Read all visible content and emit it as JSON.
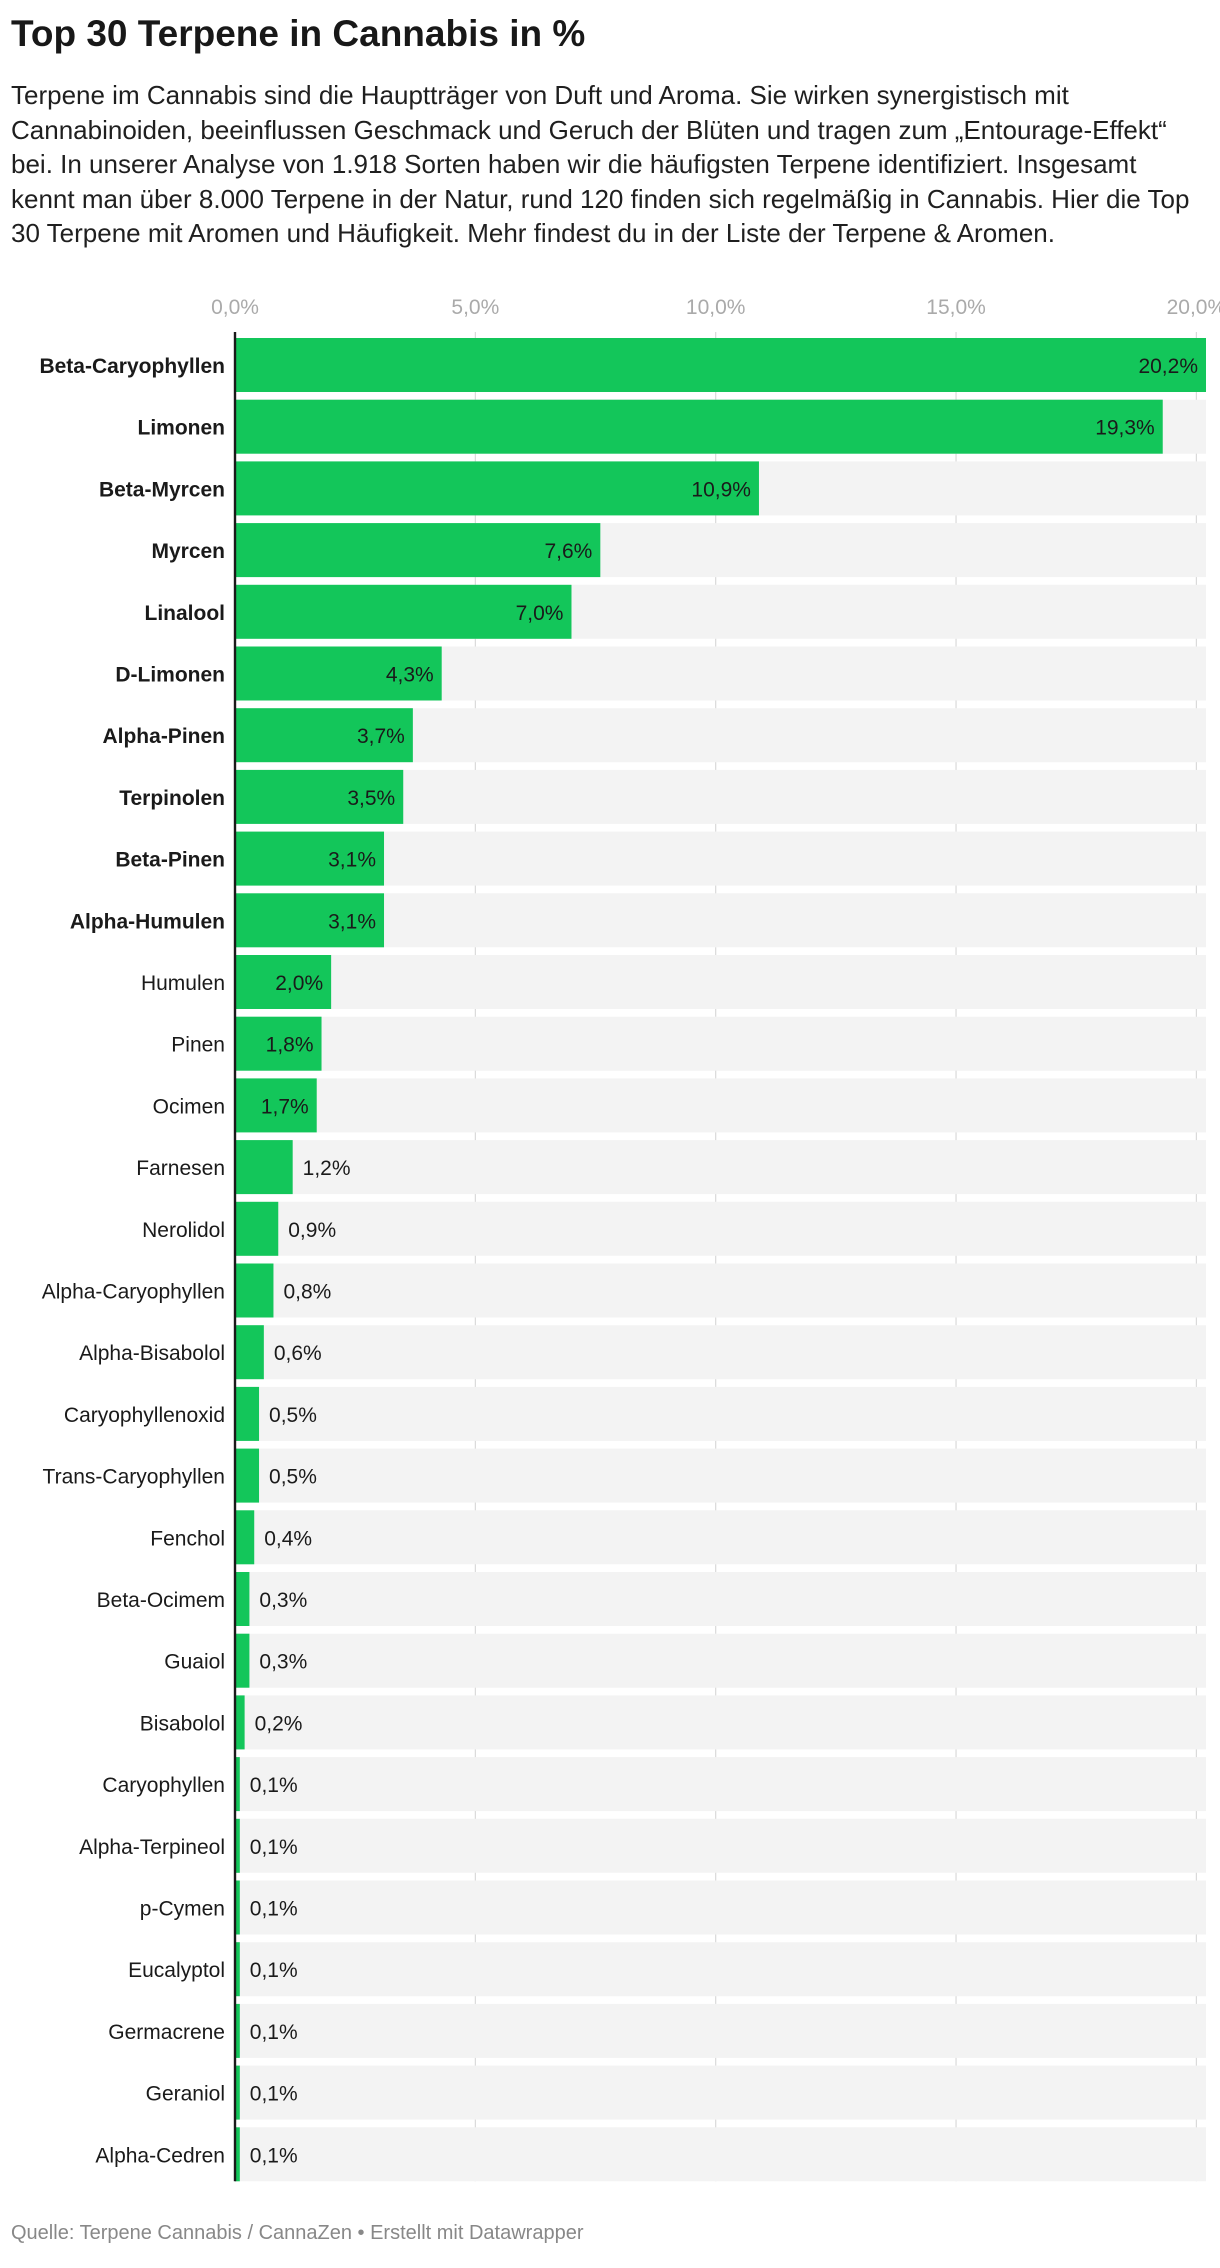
{
  "header": {
    "title": "Top 30 Terpene in Cannabis in %",
    "description": "Terpene im Cannabis sind die Hauptträger von Duft und Aroma. Sie wirken synergistisch mit Cannabinoiden, beeinflussen Geschmack und Geruch der Blüten und tragen zum „Entourage-Effekt“ bei. In unserer Analyse von 1.918 Sorten haben wir die häufigsten Terpene identifiziert. Insgesamt kennt man über 8.000 Terpene in der Natur, rund 120 finden sich regelmäßig in Cannabis. Hier die Top 30 Terpene mit Aromen und Häufigkeit. Mehr findest du in der Liste der Terpene & Aromen."
  },
  "footer": {
    "source": "Quelle: Terpene Cannabis / CannaZen • Erstellt mit Datawrapper"
  },
  "colors": {
    "bar": "#13c65a",
    "track": "#f3f3f3",
    "grid": "#d9d9d9",
    "axis": "#1a1a1a",
    "tick_label": "#aaaaaa"
  },
  "chart_data": {
    "type": "bar",
    "orientation": "horizontal",
    "title": "Top 30 Terpene in Cannabis in %",
    "xlim": [
      0,
      20.2
    ],
    "x_ticks": [
      0,
      5,
      10,
      15,
      20
    ],
    "x_tick_labels": [
      "0,0%",
      "5,0%",
      "10,0%",
      "15,0%",
      "20,0%"
    ],
    "grid": true,
    "categories": [
      "Beta-Caryophyllen",
      "Limonen",
      "Beta-Myrcen",
      "Myrcen",
      "Linalool",
      "D-Limonen",
      "Alpha-Pinen",
      "Terpinolen",
      "Beta-Pinen",
      "Alpha-Humulen",
      "Humulen",
      "Pinen",
      "Ocimen",
      "Farnesen",
      "Nerolidol",
      "Alpha-Caryophyllen",
      "Alpha-Bisabolol",
      "Caryophyllenoxid",
      "Trans-Caryophyllen",
      "Fenchol",
      "Beta-Ocimem",
      "Guaiol",
      "Bisabolol",
      "Caryophyllen",
      "Alpha-Terpineol",
      "p-Cymen",
      "Eucalyptol",
      "Germacrene",
      "Geraniol",
      "Alpha-Cedren"
    ],
    "values": [
      20.2,
      19.3,
      10.9,
      7.6,
      7.0,
      4.3,
      3.7,
      3.5,
      3.1,
      3.1,
      2.0,
      1.8,
      1.7,
      1.2,
      0.9,
      0.8,
      0.6,
      0.5,
      0.5,
      0.4,
      0.3,
      0.3,
      0.2,
      0.1,
      0.1,
      0.1,
      0.1,
      0.1,
      0.1,
      0.1
    ],
    "value_labels": [
      "20,2%",
      "19,3%",
      "10,9%",
      "7,6%",
      "7,0%",
      "4,3%",
      "3,7%",
      "3,5%",
      "3,1%",
      "3,1%",
      "2,0%",
      "1,8%",
      "1,7%",
      "1,2%",
      "0,9%",
      "0,8%",
      "0,6%",
      "0,5%",
      "0,5%",
      "0,4%",
      "0,3%",
      "0,3%",
      "0,2%",
      "0,1%",
      "0,1%",
      "0,1%",
      "0,1%",
      "0,1%",
      "0,1%",
      "0,1%"
    ],
    "bold_categories": 10
  }
}
